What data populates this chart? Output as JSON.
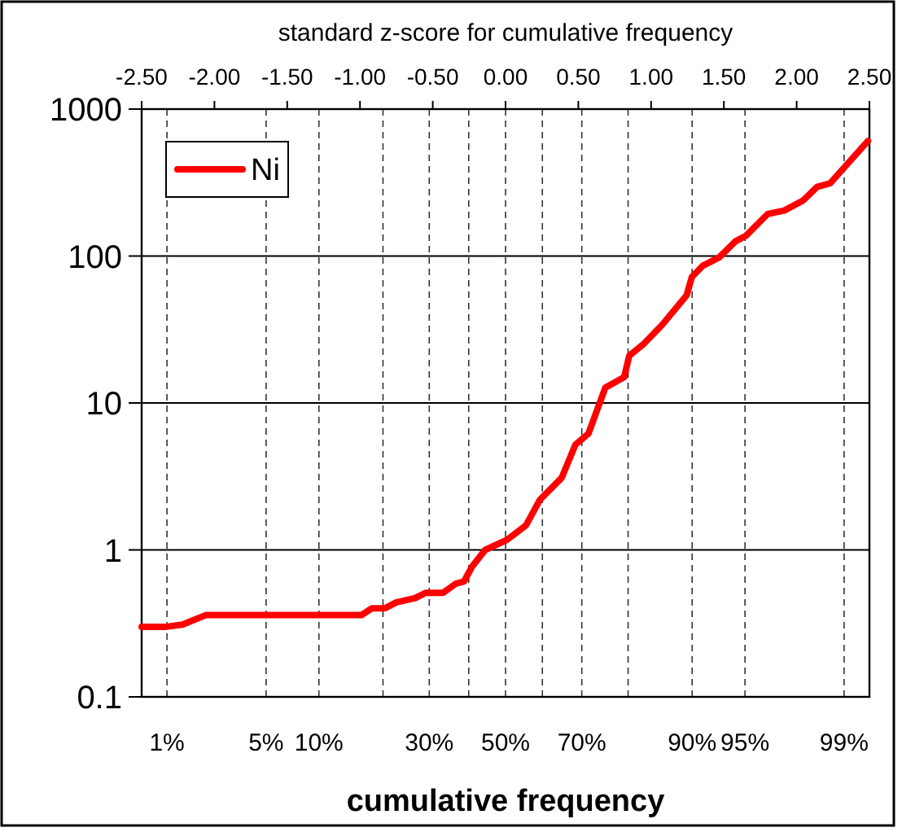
{
  "chart_data": {
    "type": "line",
    "xlabel": "standard z-score for cumulative frequency",
    "xlim": [
      -2.5,
      2.5
    ],
    "xticks": [
      {
        "value": -2.5,
        "label": "-2.50"
      },
      {
        "value": -2,
        "label": "-2.00"
      },
      {
        "value": -1.5,
        "label": "-1.50"
      },
      {
        "value": -1,
        "label": "-1.00"
      },
      {
        "value": -0.5,
        "label": "-0.50"
      },
      {
        "value": 0,
        "label": "0.00"
      },
      {
        "value": 0.5,
        "label": "0.50"
      },
      {
        "value": 1,
        "label": "1.00"
      },
      {
        "value": 1.5,
        "label": "1.50"
      },
      {
        "value": 2,
        "label": "2.00"
      },
      {
        "value": 2.5,
        "label": "2.50"
      }
    ],
    "ylim": [
      0.1,
      1000
    ],
    "yticks": [
      0.1,
      1,
      10,
      100,
      1000
    ],
    "log": "y",
    "grid": "y",
    "legend": "top left",
    "marker": "none",
    "line_style": "solid",
    "ref_lines": [
      {
        "axis": "x",
        "value": -2.326,
        "line_style": "dashed"
      },
      {
        "axis": "x",
        "value": -1.645,
        "line_style": "dashed"
      },
      {
        "axis": "x",
        "value": -1.282,
        "line_style": "dashed"
      },
      {
        "axis": "x",
        "value": -0.524,
        "line_style": "dashed"
      },
      {
        "axis": "x",
        "value": 0,
        "line_style": "dashed"
      },
      {
        "axis": "x",
        "value": 0.524,
        "line_style": "dashed"
      },
      {
        "axis": "x",
        "value": 1.282,
        "line_style": "dashed"
      },
      {
        "axis": "x",
        "value": 1.645,
        "line_style": "dashed"
      },
      {
        "axis": "x",
        "value": 2.326,
        "line_style": "dashed"
      },
      {
        "axis": "x",
        "value": -0.842,
        "line_style": "dashed"
      },
      {
        "axis": "x",
        "value": -0.253,
        "line_style": "dashed"
      },
      {
        "axis": "x",
        "value": 0.253,
        "line_style": "dashed"
      },
      {
        "axis": "x",
        "value": 0.842,
        "line_style": "dashed"
      }
    ],
    "annotations": [
      "1%",
      "5%",
      "10%",
      "30%",
      "50%",
      "70%",
      "90%",
      "95%",
      "99%",
      "cumulative frequency"
    ],
    "series": [
      {
        "name": "Ni",
        "color": "#ff0000",
        "x": [
          -2.5,
          -2.33,
          -2.22,
          -2.06,
          -0.99,
          -0.92,
          -0.83,
          -0.75,
          -0.62,
          -0.55,
          -0.43,
          -0.34,
          -0.285,
          -0.23,
          -0.14,
          0.01,
          0.14,
          0.237,
          0.386,
          0.48,
          0.57,
          0.685,
          0.815,
          0.85,
          0.945,
          1.076,
          1.244,
          1.28,
          1.356,
          1.468,
          1.58,
          1.65,
          1.8,
          1.915,
          2.045,
          2.14,
          2.23,
          2.49
        ],
        "values": [
          0.3,
          0.3,
          0.31,
          0.36,
          0.36,
          0.4,
          0.4,
          0.44,
          0.47,
          0.51,
          0.51,
          0.59,
          0.61,
          0.77,
          1.0,
          1.17,
          1.47,
          2.2,
          3.1,
          5.2,
          6.2,
          12.7,
          15,
          21,
          25,
          34,
          54,
          72,
          86,
          98,
          126,
          137,
          193,
          204,
          239,
          295,
          313,
          607
        ]
      }
    ]
  }
}
